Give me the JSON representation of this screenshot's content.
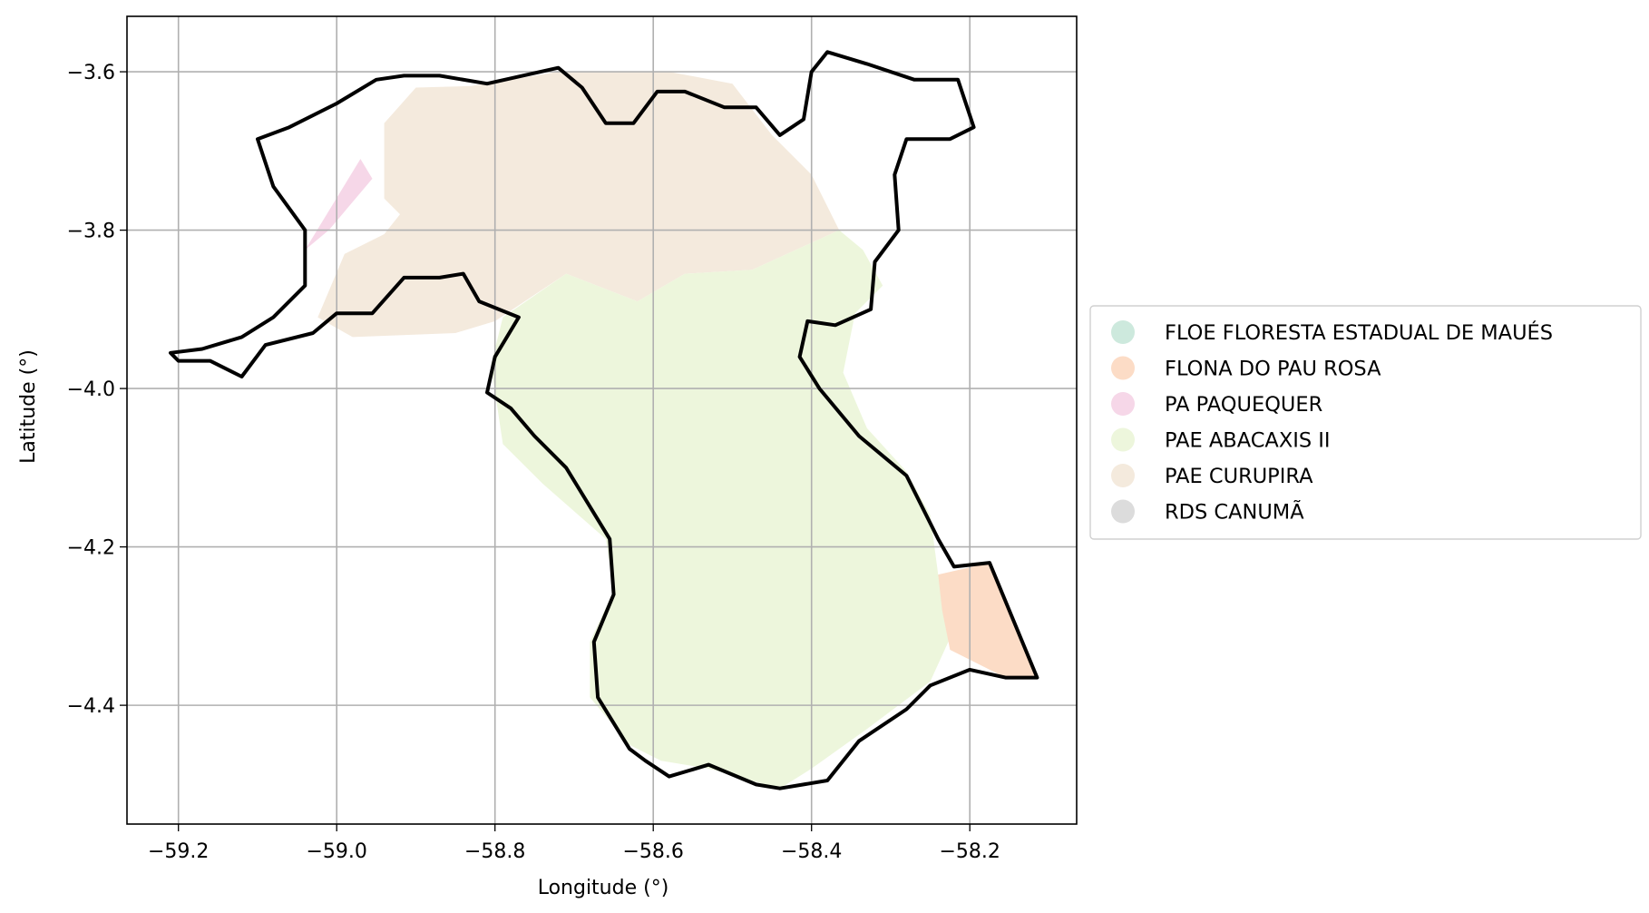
{
  "chart_data": {
    "type": "map",
    "title": "",
    "xlabel": "Longitude (°)",
    "ylabel": "Latitude (°)",
    "xlim": [
      -59.265,
      -58.065
    ],
    "ylim": [
      -4.55,
      -3.53
    ],
    "xticks": [
      -59.2,
      -59.0,
      -58.8,
      -58.6,
      -58.4,
      -58.2
    ],
    "yticks": [
      -3.6,
      -3.8,
      -4.0,
      -4.2,
      -4.4
    ],
    "xtick_labels": [
      "−59.2",
      "−59.0",
      "−58.8",
      "−58.6",
      "−58.4",
      "−58.2"
    ],
    "ytick_labels": [
      "−3.6",
      "−3.8",
      "−4.0",
      "−4.2",
      "−4.4"
    ],
    "grid": true,
    "legend_position": "right",
    "legend": [
      {
        "label": "FLOE FLORESTA ESTADUAL DE MAUÉS",
        "color": "#cde9dd"
      },
      {
        "label": "FLONA DO PAU ROSA",
        "color": "#fcdcc6"
      },
      {
        "label": "PA PAQUEQUER",
        "color": "#f6d7e8"
      },
      {
        "label": "PAE ABACAXIS II",
        "color": "#edf6dc"
      },
      {
        "label": "PAE CURUPIRA",
        "color": "#f4eadd"
      },
      {
        "label": "RDS CANUMÃ",
        "color": "#dcdcdc"
      }
    ],
    "regions": [
      {
        "name": "PAE CURUPIRA",
        "color": "#f4eadd",
        "coords": [
          [
            -59.024,
            -3.91
          ],
          [
            -58.99,
            -3.83
          ],
          [
            -58.94,
            -3.805
          ],
          [
            -58.92,
            -3.78
          ],
          [
            -58.94,
            -3.76
          ],
          [
            -58.94,
            -3.725
          ],
          [
            -58.94,
            -3.665
          ],
          [
            -58.9,
            -3.62
          ],
          [
            -58.83,
            -3.618
          ],
          [
            -58.72,
            -3.6
          ],
          [
            -58.58,
            -3.6
          ],
          [
            -58.5,
            -3.615
          ],
          [
            -58.45,
            -3.68
          ],
          [
            -58.4,
            -3.73
          ],
          [
            -58.365,
            -3.8
          ],
          [
            -58.42,
            -3.825
          ],
          [
            -58.475,
            -3.85
          ],
          [
            -58.56,
            -3.855
          ],
          [
            -58.62,
            -3.89
          ],
          [
            -58.71,
            -3.855
          ],
          [
            -58.8,
            -3.915
          ],
          [
            -58.85,
            -3.93
          ],
          [
            -58.98,
            -3.935
          ]
        ]
      },
      {
        "name": "PAE ABACAXIS II",
        "color": "#edf6dc",
        "coords": [
          [
            -58.805,
            -3.97
          ],
          [
            -58.79,
            -3.91
          ],
          [
            -58.71,
            -3.855
          ],
          [
            -58.62,
            -3.89
          ],
          [
            -58.56,
            -3.855
          ],
          [
            -58.475,
            -3.85
          ],
          [
            -58.42,
            -3.825
          ],
          [
            -58.365,
            -3.8
          ],
          [
            -58.335,
            -3.825
          ],
          [
            -58.31,
            -3.87
          ],
          [
            -58.345,
            -3.905
          ],
          [
            -58.36,
            -3.98
          ],
          [
            -58.33,
            -4.05
          ],
          [
            -58.28,
            -4.105
          ],
          [
            -58.25,
            -4.16
          ],
          [
            -58.24,
            -4.235
          ],
          [
            -58.225,
            -4.315
          ],
          [
            -58.25,
            -4.37
          ],
          [
            -58.33,
            -4.43
          ],
          [
            -58.4,
            -4.48
          ],
          [
            -58.44,
            -4.505
          ],
          [
            -58.53,
            -4.48
          ],
          [
            -58.59,
            -4.47
          ],
          [
            -58.63,
            -4.45
          ],
          [
            -58.68,
            -4.39
          ],
          [
            -58.68,
            -4.32
          ],
          [
            -58.65,
            -4.255
          ],
          [
            -58.66,
            -4.19
          ],
          [
            -58.74,
            -4.12
          ],
          [
            -58.79,
            -4.07
          ]
        ]
      },
      {
        "name": "FLONA DO PAU ROSA",
        "color": "#fcdcc6",
        "coords": [
          [
            -58.24,
            -4.235
          ],
          [
            -58.175,
            -4.22
          ],
          [
            -58.115,
            -4.365
          ],
          [
            -58.155,
            -4.365
          ],
          [
            -58.225,
            -4.33
          ],
          [
            -58.235,
            -4.28
          ]
        ]
      },
      {
        "name": "PA PAQUEQUER",
        "color": "#f6d7e8",
        "coords": [
          [
            -59.04,
            -3.825
          ],
          [
            -58.97,
            -3.71
          ],
          [
            -58.955,
            -3.735
          ],
          [
            -59.01,
            -3.8
          ]
        ]
      }
    ],
    "boundary": {
      "color": "#000000",
      "coords": [
        [
          -59.21,
          -3.955
        ],
        [
          -59.17,
          -3.95
        ],
        [
          -59.12,
          -3.935
        ],
        [
          -59.08,
          -3.91
        ],
        [
          -59.04,
          -3.87
        ],
        [
          -59.04,
          -3.8
        ],
        [
          -59.08,
          -3.745
        ],
        [
          -59.1,
          -3.685
        ],
        [
          -59.06,
          -3.67
        ],
        [
          -59.0,
          -3.64
        ],
        [
          -58.95,
          -3.61
        ],
        [
          -58.915,
          -3.605
        ],
        [
          -58.87,
          -3.605
        ],
        [
          -58.81,
          -3.615
        ],
        [
          -58.765,
          -3.605
        ],
        [
          -58.72,
          -3.595
        ],
        [
          -58.69,
          -3.62
        ],
        [
          -58.66,
          -3.665
        ],
        [
          -58.625,
          -3.665
        ],
        [
          -58.595,
          -3.625
        ],
        [
          -58.56,
          -3.625
        ],
        [
          -58.51,
          -3.645
        ],
        [
          -58.47,
          -3.645
        ],
        [
          -58.44,
          -3.68
        ],
        [
          -58.41,
          -3.66
        ],
        [
          -58.4,
          -3.6
        ],
        [
          -58.38,
          -3.575
        ],
        [
          -58.33,
          -3.59
        ],
        [
          -58.27,
          -3.61
        ],
        [
          -58.215,
          -3.61
        ],
        [
          -58.195,
          -3.67
        ],
        [
          -58.225,
          -3.685
        ],
        [
          -58.28,
          -3.685
        ],
        [
          -58.295,
          -3.73
        ],
        [
          -58.29,
          -3.8
        ],
        [
          -58.32,
          -3.84
        ],
        [
          -58.325,
          -3.9
        ],
        [
          -58.37,
          -3.92
        ],
        [
          -58.405,
          -3.915
        ],
        [
          -58.415,
          -3.96
        ],
        [
          -58.39,
          -4.0
        ],
        [
          -58.34,
          -4.06
        ],
        [
          -58.28,
          -4.11
        ],
        [
          -58.24,
          -4.19
        ],
        [
          -58.22,
          -4.225
        ],
        [
          -58.175,
          -4.22
        ],
        [
          -58.115,
          -4.365
        ],
        [
          -58.155,
          -4.365
        ],
        [
          -58.2,
          -4.355
        ],
        [
          -58.25,
          -4.375
        ],
        [
          -58.28,
          -4.405
        ],
        [
          -58.34,
          -4.445
        ],
        [
          -58.38,
          -4.495
        ],
        [
          -58.44,
          -4.505
        ],
        [
          -58.47,
          -4.5
        ],
        [
          -58.53,
          -4.475
        ],
        [
          -58.58,
          -4.49
        ],
        [
          -58.61,
          -4.47
        ],
        [
          -58.63,
          -4.455
        ],
        [
          -58.67,
          -4.39
        ],
        [
          -58.675,
          -4.32
        ],
        [
          -58.65,
          -4.26
        ],
        [
          -58.655,
          -4.19
        ],
        [
          -58.71,
          -4.1
        ],
        [
          -58.75,
          -4.06
        ],
        [
          -58.78,
          -4.025
        ],
        [
          -58.81,
          -4.005
        ],
        [
          -58.8,
          -3.96
        ],
        [
          -58.77,
          -3.91
        ],
        [
          -58.82,
          -3.89
        ],
        [
          -58.84,
          -3.855
        ],
        [
          -58.87,
          -3.86
        ],
        [
          -58.915,
          -3.86
        ],
        [
          -58.955,
          -3.905
        ],
        [
          -59.0,
          -3.905
        ],
        [
          -59.03,
          -3.93
        ],
        [
          -59.09,
          -3.945
        ],
        [
          -59.12,
          -3.985
        ],
        [
          -59.16,
          -3.965
        ],
        [
          -59.2,
          -3.965
        ],
        [
          -59.21,
          -3.955
        ]
      ]
    }
  }
}
